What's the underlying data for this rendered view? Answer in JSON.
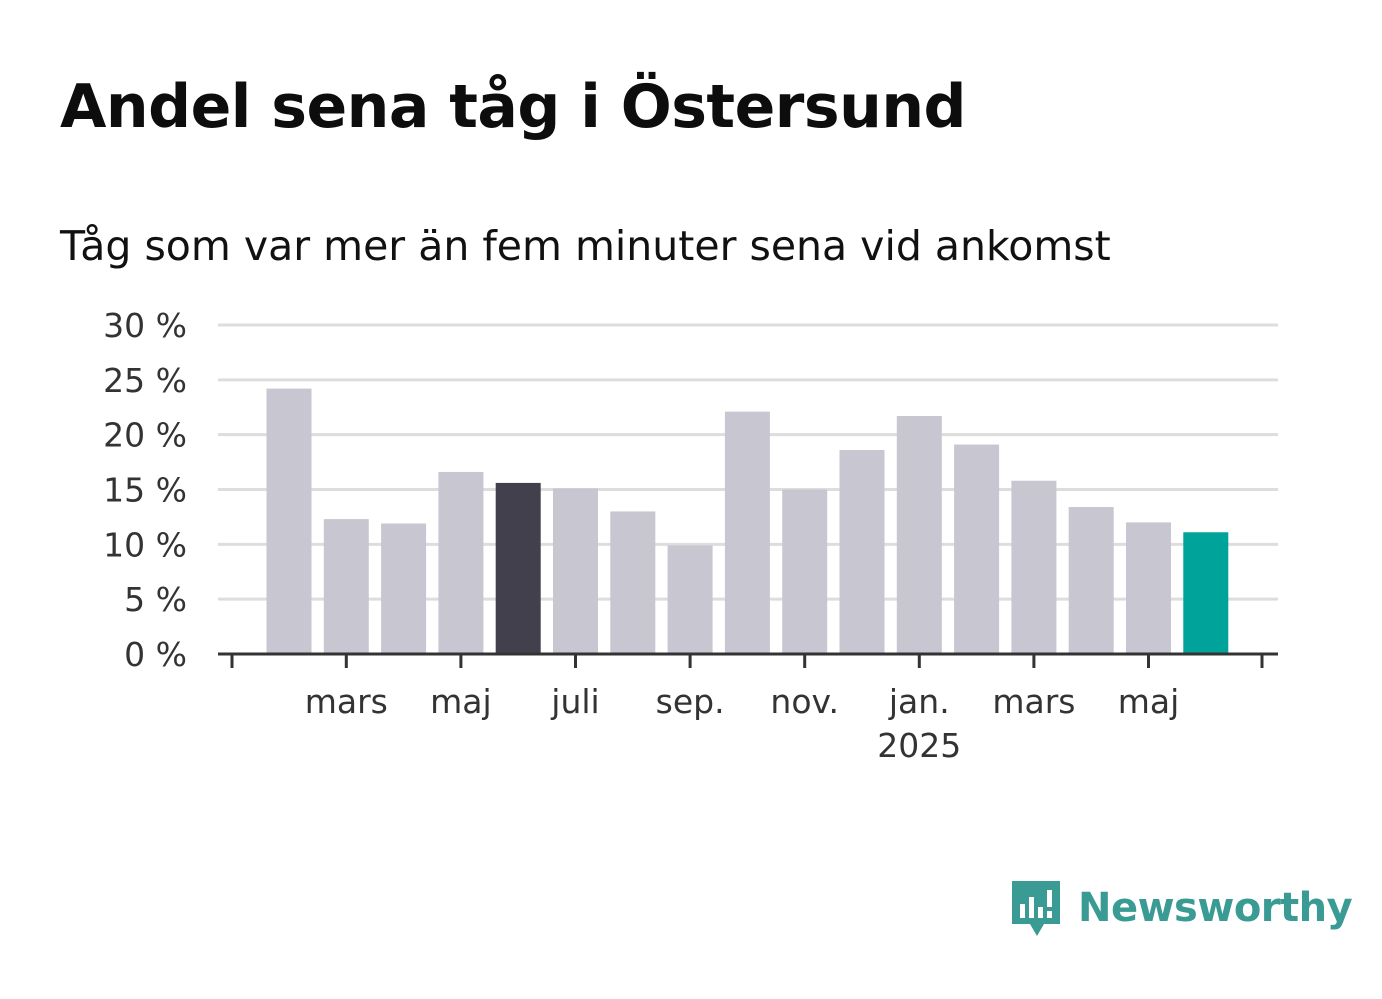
{
  "title": "Andel sena tåg i Östersund",
  "subtitle": "Tåg som var mer än fem minuter sena vid ankomst",
  "brand": {
    "name": "Newsworthy",
    "icon": "newsworthy-logo-icon",
    "color": "#3a9a94"
  },
  "colors": {
    "default": "#c8c6d1",
    "highlight": "#42404d",
    "latest": "#00a39a",
    "grid": "#dddddd",
    "axis": "#333333"
  },
  "chart_data": {
    "type": "bar",
    "title": "",
    "xlabel": "",
    "ylabel": "",
    "x": [
      "2024-02",
      "2024-03",
      "2024-04",
      "2024-05",
      "2024-06",
      "2024-07",
      "2024-08",
      "2024-09",
      "2024-10",
      "2024-11",
      "2024-12",
      "2025-01",
      "2025-02",
      "2025-03",
      "2025-04",
      "2025-05",
      "2025-06"
    ],
    "values": [
      24.2,
      12.3,
      11.9,
      16.6,
      15.6,
      15.1,
      13.0,
      9.9,
      22.1,
      15.0,
      18.6,
      21.7,
      19.1,
      15.8,
      13.4,
      12.0,
      11.1
    ],
    "highlight": [
      4
    ],
    "latest": 16,
    "ylim": [
      0,
      30
    ],
    "yticks": [
      0,
      5,
      10,
      15,
      20,
      25,
      30
    ],
    "ytick_labels": [
      "0 %",
      "5 %",
      "10 %",
      "15 %",
      "20 %",
      "25 %",
      "30 %"
    ],
    "xtick_labels": [
      {
        "index": 1,
        "label": "mars",
        "sub": ""
      },
      {
        "index": 3,
        "label": "maj",
        "sub": ""
      },
      {
        "index": 5,
        "label": "juli",
        "sub": ""
      },
      {
        "index": 7,
        "label": "sep.",
        "sub": ""
      },
      {
        "index": 9,
        "label": "nov.",
        "sub": ""
      },
      {
        "index": 11,
        "label": "jan.",
        "sub": "2025"
      },
      {
        "index": 13,
        "label": "mars",
        "sub": ""
      },
      {
        "index": 15,
        "label": "maj",
        "sub": ""
      }
    ],
    "grid": true,
    "legend": "none"
  }
}
